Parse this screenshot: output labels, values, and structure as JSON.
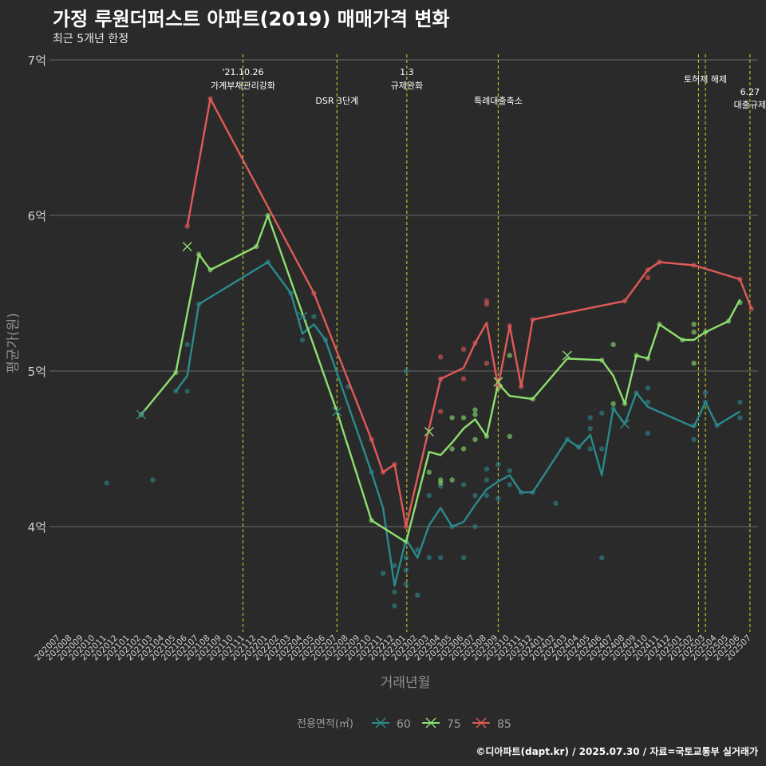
{
  "title": "가정 루원더퍼스트 아파트(2019) 매매가격 변화",
  "subtitle": "최근 5개년 한정",
  "caption": "©디아파트(dapt.kr) / 2025.07.30 / 자료=국토교통부 실거래가",
  "chart_data": {
    "type": "line",
    "xlabel": "거래년월",
    "ylabel": "평균가(원)",
    "x_start": "2020-07",
    "x_end": "2025-07",
    "ylim": [
      3.3,
      7.05
    ],
    "y_ticks": [
      {
        "value": 4,
        "label": "4억"
      },
      {
        "value": 5,
        "label": "5억"
      },
      {
        "value": 6,
        "label": "6억"
      },
      {
        "value": 7,
        "label": "7억"
      }
    ],
    "x_ticks": [
      "202007",
      "202008",
      "202009",
      "202010",
      "202011",
      "202012",
      "202101",
      "202102",
      "202103",
      "202104",
      "202105",
      "202106",
      "202107",
      "202108",
      "202109",
      "202110",
      "202111",
      "202112",
      "202201",
      "202202",
      "202203",
      "202204",
      "202205",
      "202206",
      "202207",
      "202208",
      "202209",
      "202210",
      "202211",
      "202212",
      "202301",
      "202302",
      "202303",
      "202304",
      "202305",
      "202306",
      "202307",
      "202308",
      "202309",
      "202310",
      "202311",
      "202312",
      "202401",
      "202402",
      "202403",
      "202404",
      "202405",
      "202406",
      "202407",
      "202408",
      "202409",
      "202410",
      "202411",
      "202412",
      "202501",
      "202502",
      "202503",
      "202504",
      "202505",
      "202506",
      "202507"
    ],
    "grid": "horizontal",
    "legend": {
      "title": "전용면적(㎡)",
      "position": "bottom"
    },
    "annotations": [
      {
        "x": "2021-10-26",
        "lines": [
          "'21.10.26",
          "가계부채관리강화"
        ],
        "level": "high"
      },
      {
        "x": "2022-07-01",
        "lines": [
          "DSR 3단계"
        ],
        "level": "low"
      },
      {
        "x": "2023-01-03",
        "lines": [
          "1.3",
          "규제완화"
        ],
        "level": "high"
      },
      {
        "x": "2023-09-01",
        "lines": [
          "특례대출축소"
        ],
        "level": "low"
      },
      {
        "x": "2025-02-13",
        "lines": [],
        "level": "none"
      },
      {
        "x": "2025-03-01",
        "lines": [
          "토허제 해제"
        ],
        "level": "mid"
      },
      {
        "x": "2025-06-27",
        "lines": [
          "6.27",
          "대출규제"
        ],
        "level": "mid2"
      }
    ],
    "series": [
      {
        "name": "60",
        "color": "#2a8a8c",
        "line": [
          [
            "2021-05",
            4.87
          ],
          [
            "2021-06",
            4.97
          ],
          [
            "2021-07",
            5.43
          ],
          [
            "2022-01",
            5.7
          ],
          [
            "2022-03",
            5.5
          ],
          [
            "2022-04",
            5.24
          ],
          [
            "2022-05",
            5.3
          ],
          [
            "2022-06",
            5.2
          ],
          [
            "2022-10",
            4.35
          ],
          [
            "2022-11",
            4.12
          ],
          [
            "2022-12",
            3.62
          ],
          [
            "2023-01",
            3.92
          ],
          [
            "2023-02",
            3.8
          ],
          [
            "2023-03",
            4.01
          ],
          [
            "2023-04",
            4.12
          ],
          [
            "2023-05",
            4.0
          ],
          [
            "2023-06",
            4.03
          ],
          [
            "2023-07",
            4.14
          ],
          [
            "2023-08",
            4.24
          ],
          [
            "2023-09",
            4.29
          ],
          [
            "2023-10",
            4.33
          ],
          [
            "2023-11",
            4.22
          ],
          [
            "2023-12",
            4.22
          ],
          [
            "2024-03",
            4.56
          ],
          [
            "2024-04",
            4.51
          ],
          [
            "2024-05",
            4.59
          ],
          [
            "2024-06",
            4.33
          ],
          [
            "2024-07",
            4.76
          ],
          [
            "2024-08",
            4.66
          ],
          [
            "2024-09",
            4.86
          ],
          [
            "2024-10",
            4.77
          ],
          [
            "2025-02",
            4.64
          ],
          [
            "2025-03",
            4.8
          ],
          [
            "2025-04",
            4.65
          ],
          [
            "2025-06",
            4.74
          ]
        ],
        "points": [
          [
            "2020-11",
            4.28
          ],
          [
            "2021-03",
            4.3
          ],
          [
            "2021-05",
            4.87
          ],
          [
            "2021-06",
            5.17
          ],
          [
            "2021-06",
            4.87
          ],
          [
            "2021-07",
            5.43
          ],
          [
            "2022-01",
            5.7
          ],
          [
            "2022-03",
            5.5
          ],
          [
            "2022-04",
            5.2
          ],
          [
            "2022-05",
            5.35
          ],
          [
            "2022-06",
            5.2
          ],
          [
            "2022-08",
            4.9
          ],
          [
            "2022-10",
            4.35
          ],
          [
            "2022-11",
            3.7
          ],
          [
            "2022-12",
            3.75
          ],
          [
            "2022-12",
            3.58
          ],
          [
            "2022-12",
            3.49
          ],
          [
            "2023-01",
            5.0
          ],
          [
            "2023-01",
            3.8
          ],
          [
            "2023-01",
            3.72
          ],
          [
            "2023-01",
            3.63
          ],
          [
            "2023-02",
            3.85
          ],
          [
            "2023-02",
            3.56
          ],
          [
            "2023-03",
            3.8
          ],
          [
            "2023-03",
            4.2
          ],
          [
            "2023-04",
            4.26
          ],
          [
            "2023-04",
            3.8
          ],
          [
            "2023-05",
            4.0
          ],
          [
            "2023-06",
            4.27
          ],
          [
            "2023-06",
            3.8
          ],
          [
            "2023-07",
            4.0
          ],
          [
            "2023-07",
            4.2
          ],
          [
            "2023-08",
            4.37
          ],
          [
            "2023-08",
            4.3
          ],
          [
            "2023-08",
            4.2
          ],
          [
            "2023-09",
            4.4
          ],
          [
            "2023-09",
            4.18
          ],
          [
            "2023-10",
            4.36
          ],
          [
            "2023-10",
            4.27
          ],
          [
            "2023-11",
            4.22
          ],
          [
            "2023-12",
            4.22
          ],
          [
            "2024-02",
            4.15
          ],
          [
            "2024-03",
            4.56
          ],
          [
            "2024-04",
            4.51
          ],
          [
            "2024-05",
            4.7
          ],
          [
            "2024-05",
            4.63
          ],
          [
            "2024-05",
            4.5
          ],
          [
            "2024-06",
            4.73
          ],
          [
            "2024-06",
            4.5
          ],
          [
            "2024-06",
            3.8
          ],
          [
            "2024-07",
            4.76
          ],
          [
            "2024-09",
            4.86
          ],
          [
            "2024-10",
            4.89
          ],
          [
            "2024-10",
            4.8
          ],
          [
            "2024-10",
            4.6
          ],
          [
            "2025-02",
            4.65
          ],
          [
            "2025-02",
            4.56
          ],
          [
            "2025-03",
            4.86
          ],
          [
            "2025-03",
            4.8
          ],
          [
            "2025-04",
            4.65
          ],
          [
            "2025-06",
            4.8
          ],
          [
            "2025-06",
            4.7
          ]
        ],
        "crosses": [
          [
            "2021-02",
            4.72
          ],
          [
            "2022-04",
            5.35
          ],
          [
            "2022-07",
            4.74
          ],
          [
            "2024-08",
            4.66
          ]
        ]
      },
      {
        "name": "75",
        "color": "#8de06e",
        "line": [
          [
            "2021-02",
            4.72
          ],
          [
            "2021-05",
            4.99
          ],
          [
            "2021-07",
            5.75
          ],
          [
            "2021-08",
            5.65
          ],
          [
            "2021-12",
            5.8
          ],
          [
            "2022-01",
            6.0
          ],
          [
            "2022-07",
            4.74
          ],
          [
            "2022-10",
            4.04
          ],
          [
            "2023-01",
            3.9
          ],
          [
            "2023-03",
            4.48
          ],
          [
            "2023-04",
            4.46
          ],
          [
            "2023-05",
            4.54
          ],
          [
            "2023-06",
            4.63
          ],
          [
            "2023-07",
            4.69
          ],
          [
            "2023-08",
            4.58
          ],
          [
            "2023-09",
            4.92
          ],
          [
            "2023-10",
            4.84
          ],
          [
            "2023-12",
            4.82
          ],
          [
            "2024-03",
            5.08
          ],
          [
            "2024-06",
            5.07
          ],
          [
            "2024-07",
            4.97
          ],
          [
            "2024-08",
            4.79
          ],
          [
            "2024-09",
            5.1
          ],
          [
            "2024-10",
            5.08
          ],
          [
            "2024-11",
            5.3
          ],
          [
            "2025-01",
            5.2
          ],
          [
            "2025-02",
            5.2
          ],
          [
            "2025-03",
            5.25
          ],
          [
            "2025-05",
            5.32
          ],
          [
            "2025-06",
            5.46
          ]
        ],
        "points": [
          [
            "2021-02",
            4.72
          ],
          [
            "2021-05",
            4.99
          ],
          [
            "2021-07",
            5.75
          ],
          [
            "2021-08",
            5.65
          ],
          [
            "2021-12",
            5.8
          ],
          [
            "2022-01",
            6.0
          ],
          [
            "2022-10",
            4.04
          ],
          [
            "2023-01",
            3.9
          ],
          [
            "2023-03",
            4.35
          ],
          [
            "2023-04",
            4.3
          ],
          [
            "2023-04",
            4.28
          ],
          [
            "2023-05",
            4.7
          ],
          [
            "2023-05",
            4.5
          ],
          [
            "2023-05",
            4.3
          ],
          [
            "2023-06",
            4.7
          ],
          [
            "2023-06",
            4.5
          ],
          [
            "2023-07",
            4.75
          ],
          [
            "2023-07",
            4.72
          ],
          [
            "2023-07",
            4.56
          ],
          [
            "2023-08",
            4.58
          ],
          [
            "2023-09",
            4.89
          ],
          [
            "2023-10",
            5.1
          ],
          [
            "2023-10",
            4.58
          ],
          [
            "2023-12",
            4.82
          ],
          [
            "2024-06",
            5.07
          ],
          [
            "2024-07",
            5.17
          ],
          [
            "2024-07",
            4.79
          ],
          [
            "2024-08",
            4.79
          ],
          [
            "2024-09",
            5.1
          ],
          [
            "2024-10",
            5.08
          ],
          [
            "2024-11",
            5.3
          ],
          [
            "2025-01",
            5.2
          ],
          [
            "2025-02",
            5.3
          ],
          [
            "2025-02",
            5.25
          ],
          [
            "2025-02",
            5.05
          ],
          [
            "2025-03",
            5.25
          ],
          [
            "2025-05",
            5.32
          ],
          [
            "2025-06",
            5.44
          ]
        ],
        "crosses": [
          [
            "2021-06",
            5.8
          ],
          [
            "2023-03",
            4.61
          ],
          [
            "2023-09",
            4.93
          ],
          [
            "2024-03",
            5.1
          ]
        ]
      },
      {
        "name": "85",
        "color": "#e05a57",
        "line": [
          [
            "2021-06",
            5.93
          ],
          [
            "2021-08",
            6.75
          ],
          [
            "2022-05",
            5.5
          ],
          [
            "2022-10",
            4.56
          ],
          [
            "2022-11",
            4.35
          ],
          [
            "2022-12",
            4.4
          ],
          [
            "2023-01",
            4.0
          ],
          [
            "2023-04",
            4.95
          ],
          [
            "2023-06",
            5.02
          ],
          [
            "2023-07",
            5.18
          ],
          [
            "2023-08",
            5.31
          ],
          [
            "2023-09",
            4.9
          ],
          [
            "2023-10",
            5.29
          ],
          [
            "2023-11",
            4.9
          ],
          [
            "2023-12",
            5.33
          ],
          [
            "2024-08",
            5.45
          ],
          [
            "2024-10",
            5.65
          ],
          [
            "2024-11",
            5.7
          ],
          [
            "2025-02",
            5.68
          ],
          [
            "2025-06",
            5.59
          ],
          [
            "2025-07",
            5.4
          ]
        ],
        "points": [
          [
            "2021-06",
            5.93
          ],
          [
            "2021-08",
            6.75
          ],
          [
            "2022-05",
            5.5
          ],
          [
            "2022-10",
            4.56
          ],
          [
            "2022-11",
            4.35
          ],
          [
            "2022-12",
            4.4
          ],
          [
            "2023-01",
            4.0
          ],
          [
            "2023-04",
            5.09
          ],
          [
            "2023-04",
            4.95
          ],
          [
            "2023-04",
            4.74
          ],
          [
            "2023-06",
            5.14
          ],
          [
            "2023-06",
            4.95
          ],
          [
            "2023-07",
            5.18
          ],
          [
            "2023-08",
            5.45
          ],
          [
            "2023-08",
            5.43
          ],
          [
            "2023-08",
            5.05
          ],
          [
            "2023-09",
            4.9
          ],
          [
            "2023-10",
            5.29
          ],
          [
            "2023-11",
            4.9
          ],
          [
            "2023-12",
            5.33
          ],
          [
            "2024-08",
            5.45
          ],
          [
            "2024-10",
            5.65
          ],
          [
            "2024-10",
            5.6
          ],
          [
            "2024-11",
            5.7
          ],
          [
            "2025-02",
            5.68
          ],
          [
            "2025-06",
            5.59
          ],
          [
            "2025-07",
            5.4
          ]
        ],
        "crosses": []
      }
    ]
  }
}
